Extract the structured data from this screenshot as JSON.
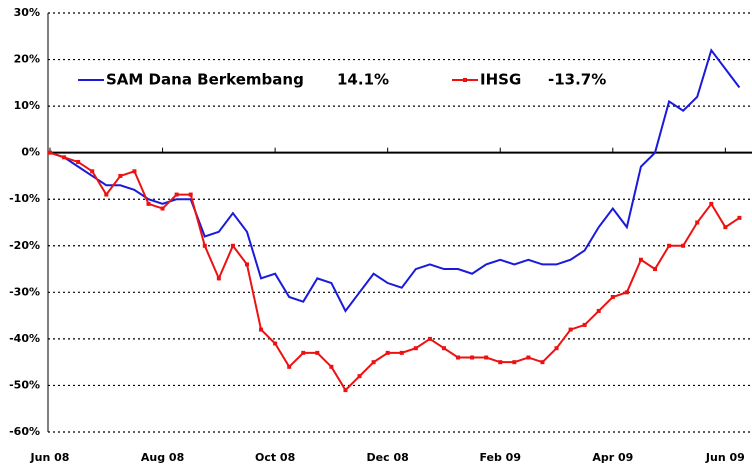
{
  "chart_data": {
    "type": "line",
    "categories": [
      "Jun 08",
      null,
      null,
      null,
      null,
      null,
      null,
      null,
      "Aug 08",
      null,
      null,
      null,
      null,
      null,
      null,
      null,
      "Oct 08",
      null,
      null,
      null,
      null,
      null,
      null,
      null,
      "Dec 08",
      null,
      null,
      null,
      null,
      null,
      null,
      null,
      "Feb 09",
      null,
      null,
      null,
      null,
      null,
      null,
      null,
      "Apr 09",
      null,
      null,
      null,
      null,
      null,
      null,
      null,
      "Jun 09",
      null
    ],
    "series": [
      {
        "name": "SAM Dana Berkembang",
        "legend_value": "14.1%",
        "color": "#1a1adc",
        "values": [
          0,
          -1,
          -3,
          -5,
          -7,
          -7,
          -8,
          -10,
          -11,
          -10,
          -10,
          -18,
          -17,
          -13,
          -17,
          -27,
          -26,
          -31,
          -32,
          -27,
          -28,
          -34,
          -30,
          -26,
          -28,
          -29,
          -25,
          -24,
          -25,
          -25,
          -26,
          -24,
          -23,
          -24,
          -23,
          -24,
          -24,
          -23,
          -21,
          -16,
          -12,
          -16,
          -3,
          0,
          11,
          9,
          12,
          22,
          18,
          14
        ]
      },
      {
        "name": "IHSG",
        "legend_value": "-13.7%",
        "color": "#ee1111",
        "values": [
          0,
          -1,
          -2,
          -4,
          -9,
          -5,
          -4,
          -11,
          -12,
          -9,
          -9,
          -20,
          -27,
          -20,
          -24,
          -38,
          -41,
          -46,
          -43,
          -43,
          -46,
          -51,
          -48,
          -45,
          -43,
          -43,
          -42,
          -40,
          -42,
          -44,
          -44,
          -44,
          -45,
          -45,
          -44,
          -45,
          -42,
          -38,
          -37,
          -34,
          -31,
          -30,
          -23,
          -25,
          -20,
          -20,
          -15,
          -11,
          -16,
          -14
        ]
      }
    ],
    "ylim": [
      -60,
      30
    ],
    "yticks": [
      {
        "value": -60,
        "label": "-60%"
      },
      {
        "value": -50,
        "label": "-50%"
      },
      {
        "value": -40,
        "label": "-40%"
      },
      {
        "value": -30,
        "label": "-30%"
      },
      {
        "value": -20,
        "label": "-20%"
      },
      {
        "value": -10,
        "label": "-10%"
      },
      {
        "value": 0,
        "label": "0%"
      },
      {
        "value": 10,
        "label": "10%"
      },
      {
        "value": 20,
        "label": "20%"
      },
      {
        "value": 30,
        "label": "30%"
      }
    ],
    "grid": true
  }
}
